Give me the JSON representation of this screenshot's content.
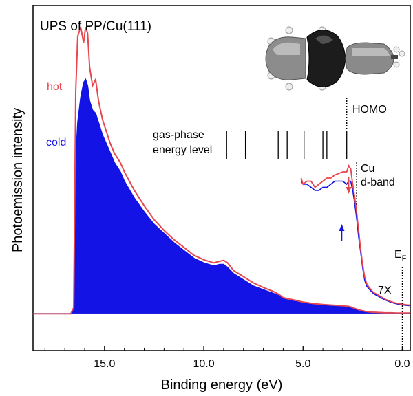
{
  "chart_data": {
    "type": "area",
    "title": "UPS of PP/Cu(111)",
    "xlabel": "Binding energy (eV)",
    "ylabel": "Photoemission intensity",
    "x_reversed": true,
    "xlim": [
      18.6,
      -0.4
    ],
    "ylim": [
      -0.12,
      1.0
    ],
    "xticks": [
      15.0,
      10.0,
      5.0,
      0.0
    ],
    "xtick_labels": [
      "15.0",
      "10.0",
      "5.0",
      "0.0"
    ],
    "grid": false,
    "colors": {
      "hot": "#e8464f",
      "cold": "#1313e6",
      "axis": "#000000"
    },
    "series": [
      {
        "name": "hot",
        "label_color": "#e8464f",
        "x": [
          18.6,
          17.0,
          16.7,
          16.55,
          16.45,
          16.35,
          16.2,
          16.05,
          15.95,
          15.85,
          15.75,
          15.6,
          15.45,
          15.3,
          15.1,
          14.9,
          14.7,
          14.5,
          14.2,
          14.0,
          13.5,
          13.0,
          12.5,
          12.0,
          11.5,
          11.0,
          10.5,
          10.0,
          9.5,
          9.2,
          9.0,
          8.8,
          8.5,
          8.0,
          7.5,
          7.0,
          6.5,
          6.2,
          6.0,
          5.5,
          5.0,
          4.5,
          4.0,
          3.5,
          3.0,
          2.7,
          2.5,
          2.3,
          2.1,
          1.9,
          1.7,
          1.5,
          1.2,
          0.9,
          0.6,
          0.3,
          0.0,
          -0.4
        ],
        "y": [
          0.0,
          0.0,
          0.0,
          0.02,
          0.72,
          0.9,
          0.93,
          0.88,
          0.93,
          0.91,
          0.8,
          0.74,
          0.76,
          0.69,
          0.63,
          0.59,
          0.55,
          0.52,
          0.49,
          0.46,
          0.4,
          0.35,
          0.305,
          0.27,
          0.24,
          0.215,
          0.19,
          0.175,
          0.165,
          0.17,
          0.173,
          0.165,
          0.14,
          0.12,
          0.1,
          0.085,
          0.072,
          0.062,
          0.052,
          0.045,
          0.038,
          0.033,
          0.03,
          0.028,
          0.026,
          0.024,
          0.02,
          0.015,
          0.011,
          0.008,
          0.006,
          0.005,
          0.004,
          0.003,
          0.003,
          0.002,
          0.002,
          0.002
        ]
      },
      {
        "name": "cold",
        "label_color": "#1313e6",
        "x": [
          18.6,
          17.0,
          16.7,
          16.55,
          16.45,
          16.35,
          16.2,
          16.05,
          15.95,
          15.85,
          15.75,
          15.6,
          15.45,
          15.3,
          15.1,
          14.9,
          14.7,
          14.5,
          14.2,
          14.0,
          13.5,
          13.0,
          12.5,
          12.0,
          11.5,
          11.0,
          10.5,
          10.0,
          9.5,
          9.2,
          9.0,
          8.8,
          8.5,
          8.0,
          7.5,
          7.0,
          6.5,
          6.2,
          6.0,
          5.5,
          5.0,
          4.5,
          4.0,
          3.5,
          3.0,
          2.7,
          2.5,
          2.3,
          2.1,
          1.9,
          1.7,
          1.5,
          1.2,
          0.9,
          0.6,
          0.3,
          0.0,
          -0.4
        ],
        "y": [
          0.0,
          0.0,
          0.0,
          0.02,
          0.5,
          0.62,
          0.7,
          0.75,
          0.76,
          0.74,
          0.69,
          0.66,
          0.65,
          0.62,
          0.58,
          0.55,
          0.52,
          0.49,
          0.46,
          0.43,
          0.375,
          0.33,
          0.29,
          0.26,
          0.23,
          0.205,
          0.18,
          0.165,
          0.155,
          0.16,
          0.16,
          0.15,
          0.13,
          0.11,
          0.09,
          0.078,
          0.066,
          0.058,
          0.048,
          0.041,
          0.035,
          0.03,
          0.028,
          0.026,
          0.024,
          0.022,
          0.018,
          0.014,
          0.01,
          0.008,
          0.006,
          0.005,
          0.004,
          0.003,
          0.003,
          0.002,
          0.002,
          0.002
        ]
      },
      {
        "name": "hot",
        "label_color": "#e8464f",
        "magnification": "7X",
        "x": [
          5.1,
          5.0,
          4.8,
          4.6,
          4.4,
          4.2,
          4.0,
          3.8,
          3.6,
          3.4,
          3.2,
          3.0,
          2.8,
          2.7,
          2.6,
          2.5,
          2.4,
          2.3,
          2.2,
          2.1,
          2.0,
          1.9,
          1.8,
          1.7,
          1.6,
          1.5,
          1.4,
          1.2,
          1.0,
          0.8,
          0.6,
          0.4,
          0.2,
          0.0,
          -0.2,
          -0.4
        ],
        "y": [
          0.44,
          0.42,
          0.43,
          0.43,
          0.41,
          0.42,
          0.43,
          0.44,
          0.44,
          0.45,
          0.455,
          0.46,
          0.46,
          0.48,
          0.47,
          0.42,
          0.38,
          0.33,
          0.27,
          0.21,
          0.16,
          0.12,
          0.098,
          0.088,
          0.08,
          0.072,
          0.067,
          0.06,
          0.052,
          0.045,
          0.04,
          0.036,
          0.033,
          0.031,
          0.029,
          0.028
        ]
      },
      {
        "name": "cold",
        "label_color": "#1313e6",
        "magnification": "7X",
        "x": [
          5.1,
          5.0,
          4.8,
          4.6,
          4.4,
          4.2,
          4.0,
          3.8,
          3.6,
          3.4,
          3.2,
          3.0,
          2.8,
          2.7,
          2.6,
          2.5,
          2.4,
          2.3,
          2.2,
          2.1,
          2.0,
          1.9,
          1.8,
          1.7,
          1.6,
          1.5,
          1.4,
          1.2,
          1.0,
          0.8,
          0.6,
          0.4,
          0.2,
          0.0,
          -0.2,
          -0.4
        ],
        "y": [
          0.43,
          0.42,
          0.42,
          0.41,
          0.4,
          0.4,
          0.41,
          0.41,
          0.42,
          0.43,
          0.43,
          0.43,
          0.42,
          0.43,
          0.43,
          0.4,
          0.36,
          0.31,
          0.25,
          0.2,
          0.15,
          0.11,
          0.09,
          0.082,
          0.075,
          0.068,
          0.063,
          0.056,
          0.049,
          0.043,
          0.038,
          0.034,
          0.031,
          0.029,
          0.027,
          0.026
        ]
      }
    ],
    "legend": [
      {
        "label": "hot",
        "color": "#e8464f",
        "placement": "upper-left"
      },
      {
        "label": "cold",
        "color": "#1313e6",
        "placement": "upper-left"
      }
    ],
    "gas_phase_levels": {
      "label_line1": "gas-phase",
      "label_line2": "energy level",
      "x": [
        8.85,
        7.9,
        6.25,
        5.8,
        4.95,
        4.0,
        3.8,
        2.8
      ]
    },
    "annotations": [
      {
        "id": "homo",
        "text": "HOMO",
        "x": 2.8,
        "style": "dotted-line"
      },
      {
        "id": "cu-d",
        "text_line1": "Cu",
        "text_line2": "d-band",
        "x": 2.3,
        "style": "dotted-line"
      },
      {
        "id": "ef",
        "text_main": "E",
        "text_sub": "F",
        "x": 0.0,
        "style": "dotted-line"
      },
      {
        "id": "mag",
        "text": "7X"
      }
    ],
    "arrows": [
      {
        "series": "hot",
        "color": "#e8464f",
        "x": 2.7,
        "direction": "down"
      },
      {
        "series": "cold",
        "color": "#1313e6",
        "x": 3.05,
        "direction": "up"
      }
    ],
    "inset_molecule": "molecule-illustration"
  }
}
